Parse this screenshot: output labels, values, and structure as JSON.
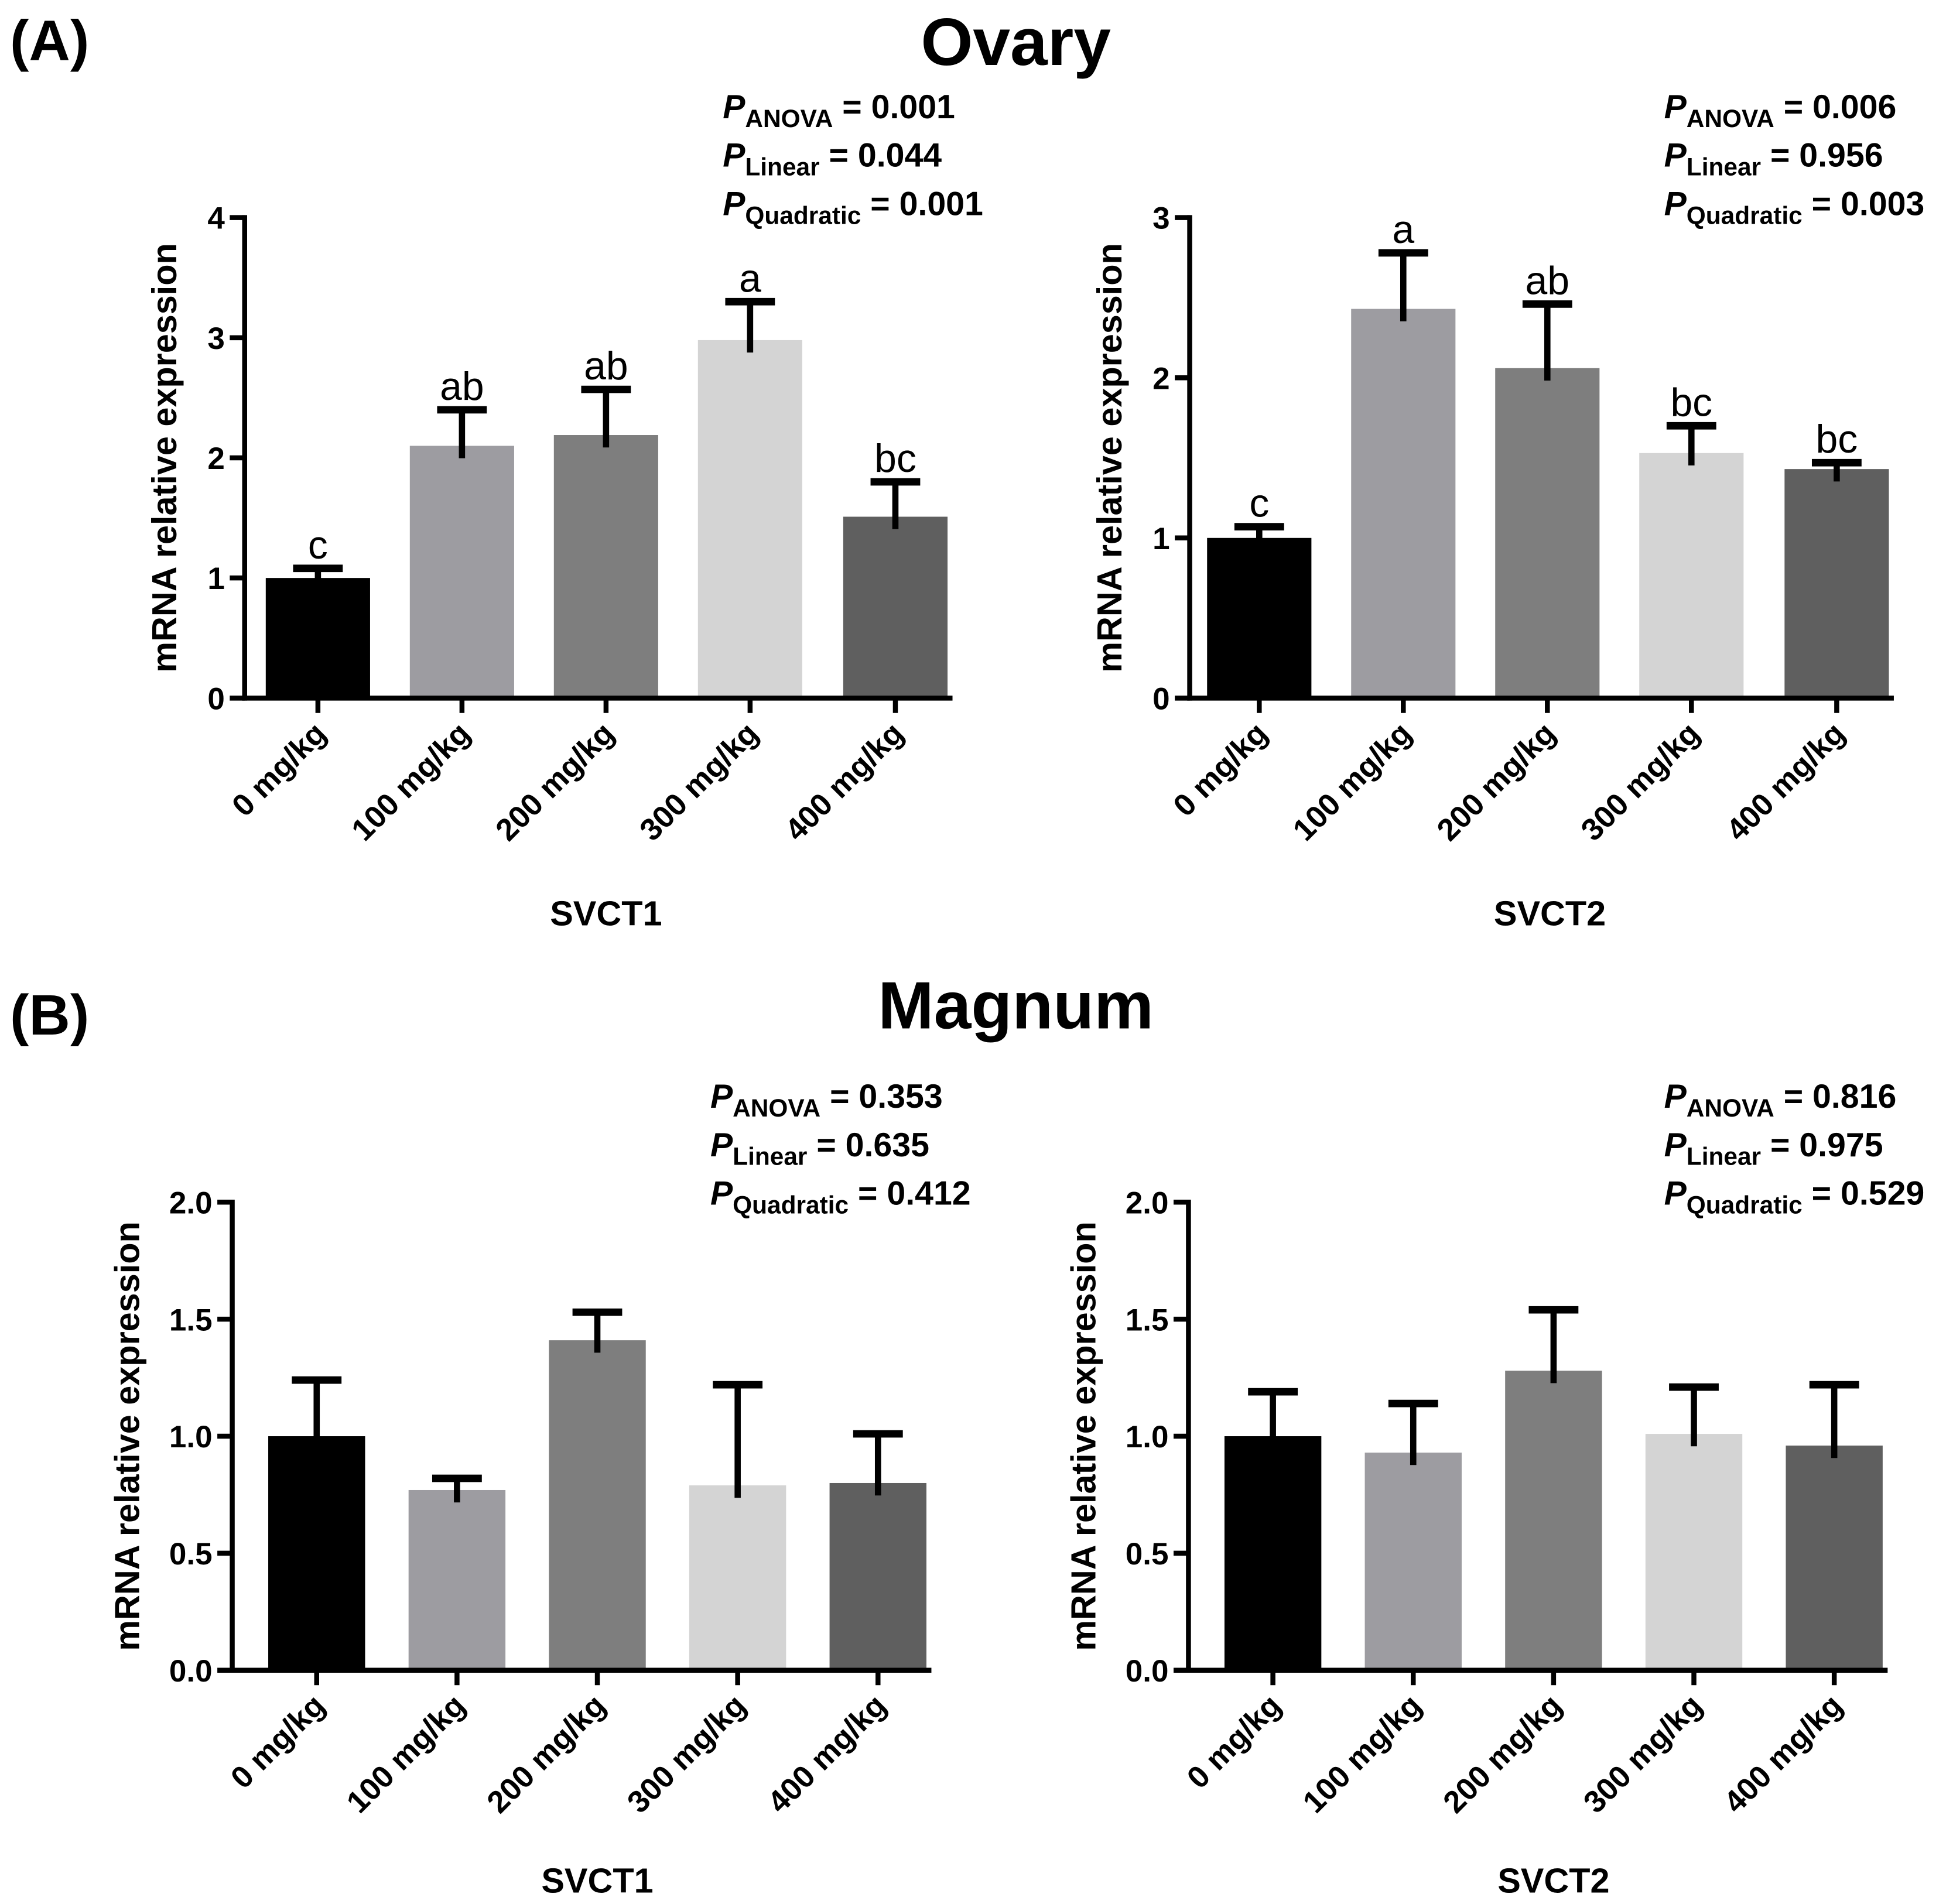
{
  "chart_data": [
    {
      "type": "bar",
      "panel": "(A)",
      "section_title": "Ovary",
      "gene": "SVCT1",
      "xlabel": "SVCT1",
      "ylabel": "mRNA relative expression",
      "ylim": [
        0,
        4
      ],
      "yticks": [
        "0",
        "1",
        "2",
        "3",
        "4"
      ],
      "ytick_values": [
        0,
        1,
        2,
        3,
        4
      ],
      "categories": [
        "0 mg/kg",
        "100 mg/kg",
        "200 mg/kg",
        "300 mg/kg",
        "400 mg/kg"
      ],
      "values": [
        1.0,
        2.1,
        2.19,
        2.98,
        1.51
      ],
      "errors": [
        0.08,
        0.3,
        0.38,
        0.32,
        0.29
      ],
      "letters": [
        "c",
        "ab",
        "ab",
        "a",
        "bc"
      ],
      "stats": [
        {
          "p": "P",
          "sub": "ANOVA",
          "value": " = 0.001"
        },
        {
          "p": "P",
          "sub": "Linear",
          "value": " = 0.044"
        },
        {
          "p": "P",
          "sub": "Quadratic",
          "value": " = 0.001"
        }
      ]
    },
    {
      "type": "bar",
      "panel": "",
      "section_title": "",
      "gene": "SVCT2",
      "xlabel": "SVCT2",
      "ylabel": "mRNA relative expression",
      "ylim": [
        0,
        3
      ],
      "yticks": [
        "0",
        "1",
        "2",
        "3"
      ],
      "ytick_values": [
        0,
        1,
        2,
        3
      ],
      "categories": [
        "0 mg/kg",
        "100 mg/kg",
        "200 mg/kg",
        "300 mg/kg",
        "400 mg/kg"
      ],
      "values": [
        1.0,
        2.43,
        2.06,
        1.53,
        1.43
      ],
      "errors": [
        0.07,
        0.35,
        0.4,
        0.17,
        0.04
      ],
      "letters": [
        "c",
        "a",
        "ab",
        "bc",
        "bc"
      ],
      "stats": [
        {
          "p": "P",
          "sub": "ANOVA",
          "value": " = 0.006"
        },
        {
          "p": "P",
          "sub": "Linear",
          "value": " = 0.956"
        },
        {
          "p": "P",
          "sub": "Quadratic",
          "value": " = 0.003"
        }
      ]
    },
    {
      "type": "bar",
      "panel": "(B)",
      "section_title": "Magnum",
      "gene": "SVCT1",
      "xlabel": "SVCT1",
      "ylabel": "mRNA relative expression",
      "ylim": [
        0,
        2
      ],
      "yticks": [
        "0.0",
        "0.5",
        "1.0",
        "1.5",
        "2.0"
      ],
      "ytick_values": [
        0,
        0.5,
        1,
        1.5,
        2
      ],
      "categories": [
        "0 mg/kg",
        "100 mg/kg",
        "200 mg/kg",
        "300 mg/kg",
        "400 mg/kg"
      ],
      "values": [
        1.0,
        0.77,
        1.41,
        0.79,
        0.8
      ],
      "errors": [
        0.24,
        0.05,
        0.12,
        0.43,
        0.21
      ],
      "letters": [
        "",
        "",
        "",
        "",
        ""
      ],
      "stats": [
        {
          "p": "P",
          "sub": "ANOVA",
          "value": " = 0.353"
        },
        {
          "p": "P",
          "sub": "Linear",
          "value": " = 0.635"
        },
        {
          "p": "P",
          "sub": "Quadratic",
          "value": " = 0.412"
        }
      ]
    },
    {
      "type": "bar",
      "panel": "",
      "section_title": "",
      "gene": "SVCT2",
      "xlabel": "SVCT2",
      "ylabel": "mRNA relative expression",
      "ylim": [
        0,
        2
      ],
      "yticks": [
        "0.0",
        "0.5",
        "1.0",
        "1.5",
        "2.0"
      ],
      "ytick_values": [
        0,
        0.5,
        1,
        1.5,
        2
      ],
      "categories": [
        "0 mg/kg",
        "100 mg/kg",
        "200 mg/kg",
        "300 mg/kg",
        "400 mg/kg"
      ],
      "values": [
        1.0,
        0.93,
        1.28,
        1.01,
        0.96
      ],
      "errors": [
        0.19,
        0.21,
        0.26,
        0.2,
        0.26
      ],
      "letters": [
        "",
        "",
        "",
        "",
        ""
      ],
      "stats": [
        {
          "p": "P",
          "sub": "ANOVA",
          "value": " = 0.816"
        },
        {
          "p": "P",
          "sub": "Linear",
          "value": " = 0.975"
        },
        {
          "p": "P",
          "sub": "Quadratic",
          "value": " = 0.529"
        }
      ]
    }
  ],
  "colors": [
    "#000000",
    "#9d9ca1",
    "#7e7e7e",
    "#d4d4d4",
    "#5f5f5f"
  ]
}
